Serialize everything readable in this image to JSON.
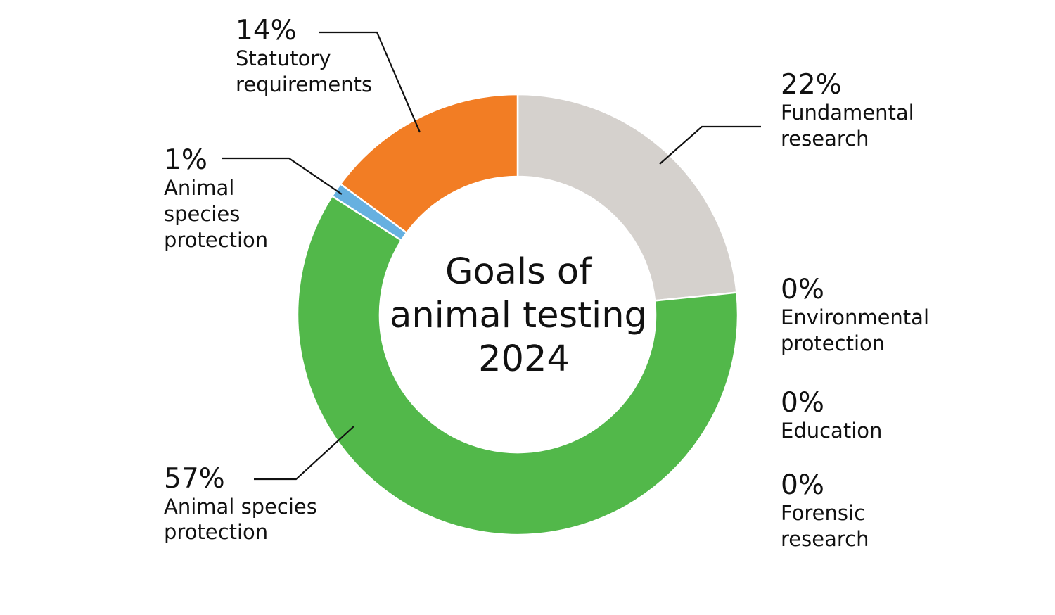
{
  "chart_data": {
    "type": "pie",
    "donut": true,
    "center_title": [
      "Goals of",
      "animal testing",
      "2024"
    ],
    "categories": [
      "Fundamental research",
      "Environmental protection",
      "Education",
      "Forensic research",
      "Animal species protection",
      "Animal species protection",
      "Statutory requirements"
    ],
    "values": [
      22,
      0,
      0,
      0,
      57,
      1,
      14
    ],
    "labels": [
      {
        "value": "22%",
        "lines": [
          "Fundamental",
          "research"
        ]
      },
      {
        "value": "0%",
        "lines": [
          "Environmental",
          "protection"
        ]
      },
      {
        "value": "0%",
        "lines": [
          "Education"
        ]
      },
      {
        "value": "0%",
        "lines": [
          "Forensic",
          "research"
        ]
      },
      {
        "value": "57%",
        "lines": [
          "Animal species",
          "protection"
        ]
      },
      {
        "value": "1%",
        "lines": [
          "Animal",
          "species",
          "protection"
        ]
      },
      {
        "value": "14%",
        "lines": [
          "Statutory",
          "requirements"
        ]
      }
    ],
    "colors": [
      "#d5d1cd",
      "#d5d1cd",
      "#d5d1cd",
      "#d5d1cd",
      "#52b84a",
      "#66b0e0",
      "#f27d24"
    ],
    "legend": "none"
  }
}
